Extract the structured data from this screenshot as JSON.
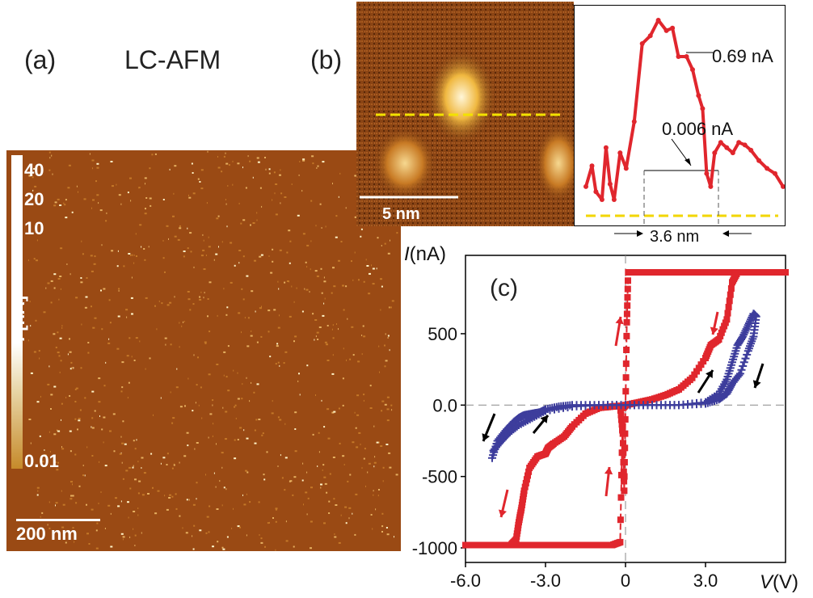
{
  "labels": {
    "panel_a": "(a)",
    "panel_b": "(b)",
    "panel_c": "(c)",
    "title": "LC-AFM"
  },
  "colorbar": {
    "ticks": [
      "40",
      "20",
      "10",
      "0.01"
    ],
    "label_italic": "I",
    "label_unit": " [nA]"
  },
  "scalebars": {
    "map_a": "200 nm",
    "map_b": "5 nm"
  },
  "profile": {
    "peak_label": "0.69 nA",
    "base_label": "0.006 nA",
    "width_label": "3.6 nm"
  },
  "colors": {
    "map_background": "#9a4a14",
    "series_red": "#e0262d",
    "series_blue": "#3d3d9c",
    "profile_dash": "#f2d600",
    "arrow_red": "#e0262d",
    "arrow_black": "#000000"
  },
  "chart_data": {
    "type": "line",
    "title": "",
    "xlabel_italic": "V",
    "xlabel_unit": "(V)",
    "ylabel_italic": "I",
    "ylabel_unit": "(nA)",
    "xlim": [
      -6.0,
      6.0
    ],
    "ylim": [
      -1000,
      1000
    ],
    "xticks": [
      "-6.0",
      "-3.0",
      "0",
      "3.0"
    ],
    "yticks": [
      "500",
      "0.0",
      "-500",
      "-1000"
    ],
    "xtick_values": [
      -6.0,
      -3.0,
      0,
      3.0
    ],
    "ytick_values": [
      500,
      0,
      -500,
      -1000
    ],
    "series": [
      {
        "color": "#e0262d",
        "marker": "square",
        "x": [
          -6.0,
          -5.0,
          -4.3,
          -4.1,
          -4.0,
          -3.9,
          -3.8,
          -3.6,
          -3.3,
          -3.0,
          -2.9,
          -2.7,
          -2.3,
          -2.0,
          -1.5,
          -1.0,
          -0.5,
          -0.2,
          -0.1,
          -0.05,
          0.0,
          0.05,
          0.1,
          0.2,
          0.5,
          1.0,
          1.5,
          2.0,
          2.5,
          3.0,
          3.3,
          3.5,
          3.7,
          3.9,
          4.0,
          4.1,
          4.2,
          4.5,
          5.0,
          6.0
        ],
        "y": [
          -980,
          -980,
          -980,
          -940,
          -820,
          -720,
          -600,
          -440,
          -360,
          -340,
          -300,
          -270,
          -220,
          -150,
          -60,
          -20,
          -10,
          -5,
          -200,
          -600,
          0,
          580,
          930,
          930,
          930,
          930,
          930,
          930,
          930,
          930,
          930,
          930,
          930,
          930,
          930,
          930,
          930,
          930,
          930,
          930
        ],
        "y_return": [
          null
        ],
        "note_segments": [
          {
            "x": [
              6.0,
              4.2,
              4.0,
              3.8,
              3.5,
              3.2,
              3.0,
              2.5,
              2.0,
              1.5,
              1.0,
              0.5,
              0.0,
              -0.1,
              -0.2,
              -0.5,
              -1.0,
              -2.0,
              -3.0,
              -4.0,
              -5.0,
              -6.0
            ],
            "y": [
              930,
              930,
              860,
              600,
              460,
              420,
              330,
              190,
              110,
              70,
              40,
              20,
              0,
              -20,
              -960,
              -980,
              -980,
              -980,
              -980,
              -980,
              -980,
              -980
            ]
          }
        ]
      },
      {
        "color": "#3d3d9c",
        "marker": "plus",
        "x": [
          -5.0,
          -4.8,
          -4.5,
          -4.2,
          -4.0,
          -3.8,
          -3.5,
          -3.2,
          -3.0,
          -2.5,
          -2.0,
          -1.0,
          0.0,
          1.0,
          2.0,
          3.0,
          3.5,
          3.8,
          4.0,
          4.2,
          4.4,
          4.6,
          4.8,
          4.9
        ],
        "y": [
          -370,
          -250,
          -180,
          -120,
          -90,
          -70,
          -60,
          -50,
          -30,
          -10,
          0,
          0,
          0,
          0,
          0,
          20,
          80,
          180,
          300,
          420,
          480,
          560,
          640,
          620
        ],
        "note_segments": [
          {
            "x": [
              4.9,
              4.8,
              4.6,
              4.3,
              4.0,
              3.8,
              3.5,
              3.0,
              2.0,
              1.0,
              0.0,
              -1.0,
              -2.0,
              -3.0,
              -3.5,
              -4.0,
              -4.4,
              -4.7,
              -5.0
            ],
            "y": [
              620,
              480,
              380,
              220,
              150,
              80,
              40,
              10,
              0,
              0,
              0,
              0,
              -10,
              -40,
              -90,
              -140,
              -200,
              -260,
              -330
            ]
          }
        ]
      }
    ],
    "profile_chart": {
      "type": "line",
      "color": "#e0262d",
      "x_nm": [
        0.0,
        0.3,
        0.5,
        0.8,
        1.0,
        1.2,
        1.4,
        1.7,
        2.0,
        2.4,
        2.8,
        3.2,
        3.6,
        4.0,
        4.3,
        4.6,
        5.0,
        5.3,
        5.6,
        5.8,
        6.0,
        6.2,
        6.4,
        6.7,
        7.0,
        7.3,
        7.6,
        7.9,
        8.2,
        8.6,
        9.0,
        9.4,
        9.8
      ],
      "y_nA": [
        0.05,
        0.13,
        0.03,
        0.0,
        0.2,
        0.06,
        0.0,
        0.18,
        0.12,
        0.3,
        0.6,
        0.63,
        0.69,
        0.65,
        0.66,
        0.55,
        0.55,
        0.5,
        0.4,
        0.35,
        0.1,
        0.05,
        0.18,
        0.22,
        0.2,
        0.18,
        0.22,
        0.21,
        0.19,
        0.15,
        0.12,
        0.1,
        0.05
      ]
    }
  }
}
